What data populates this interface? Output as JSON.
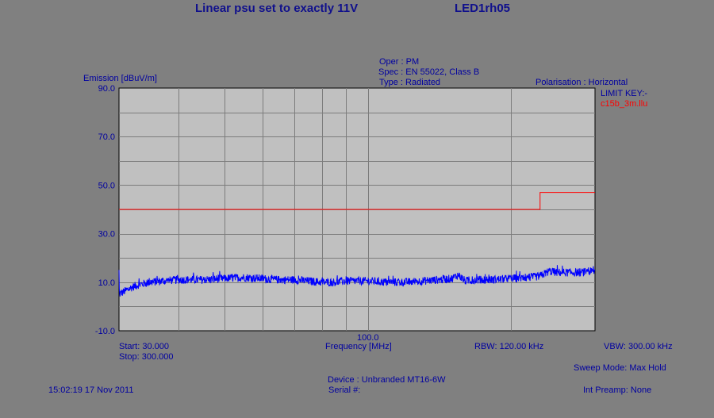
{
  "header": {
    "title": "Linear psu set to exactly 11V",
    "file_id": "LED1rh05"
  },
  "info": {
    "oper": "Oper : PM",
    "spec": "Spec : EN 55022, Class B",
    "type": "Type : Radiated",
    "polarisation": "Polarisation : Horizontal",
    "limit_key_label": "LIMIT KEY:-",
    "limit_file": "c15b_3m.llu"
  },
  "footer": {
    "start": "Start: 30.000",
    "stop": "Stop: 300.000",
    "xlabel": "Frequency [MHz]",
    "rbw": "RBW: 120.00 kHz",
    "vbw": "VBW: 300.00 kHz",
    "sweep_mode": "Sweep Mode: Max Hold",
    "device": "Device : Unbranded MT16-6W",
    "serial": "Serial #:",
    "int_preamp": "Int Preamp: None",
    "timestamp": "15:02:19 17 Nov 2011"
  },
  "chart_data": {
    "type": "line",
    "ylabel": "Emission [dBuV/m]",
    "xlabel": "Frequency [MHz]",
    "x_scale": "log",
    "xlim": [
      30,
      300
    ],
    "ylim": [
      -10,
      90
    ],
    "y_ticks": [
      "90.0",
      "70.0",
      "50.0",
      "30.0",
      "10.0",
      "-10.0"
    ],
    "y_tick_values": [
      90,
      70,
      50,
      30,
      10,
      -10
    ],
    "x_tick_labels": [
      {
        "value": 100,
        "label": "100.0"
      }
    ],
    "x_gridlines": [
      40,
      50,
      60,
      70,
      80,
      90,
      100,
      200
    ],
    "grid": true,
    "limit": {
      "name": "c15b_3m.llu",
      "color": "#ff0000",
      "points": [
        [
          30,
          40
        ],
        [
          230,
          40
        ],
        [
          230,
          47
        ],
        [
          300,
          47
        ]
      ]
    },
    "trace": {
      "color": "#0000ff",
      "x": [
        30,
        31,
        32,
        33,
        35,
        37,
        40,
        45,
        50,
        55,
        60,
        65,
        70,
        75,
        80,
        85,
        90,
        100,
        110,
        120,
        130,
        140,
        150,
        155,
        160,
        170,
        180,
        200,
        220,
        230,
        240,
        250,
        260,
        280,
        300
      ],
      "y": [
        5,
        6.5,
        8,
        9,
        10,
        10.5,
        11,
        11,
        11.5,
        12,
        11.5,
        11,
        11,
        10.5,
        10,
        10,
        10.5,
        10.5,
        10,
        10,
        10.5,
        11,
        11.5,
        13,
        10.5,
        11,
        11,
        11.5,
        12,
        12.5,
        14.5,
        14,
        14,
        14,
        14.5
      ],
      "noise": 1.2
    }
  }
}
